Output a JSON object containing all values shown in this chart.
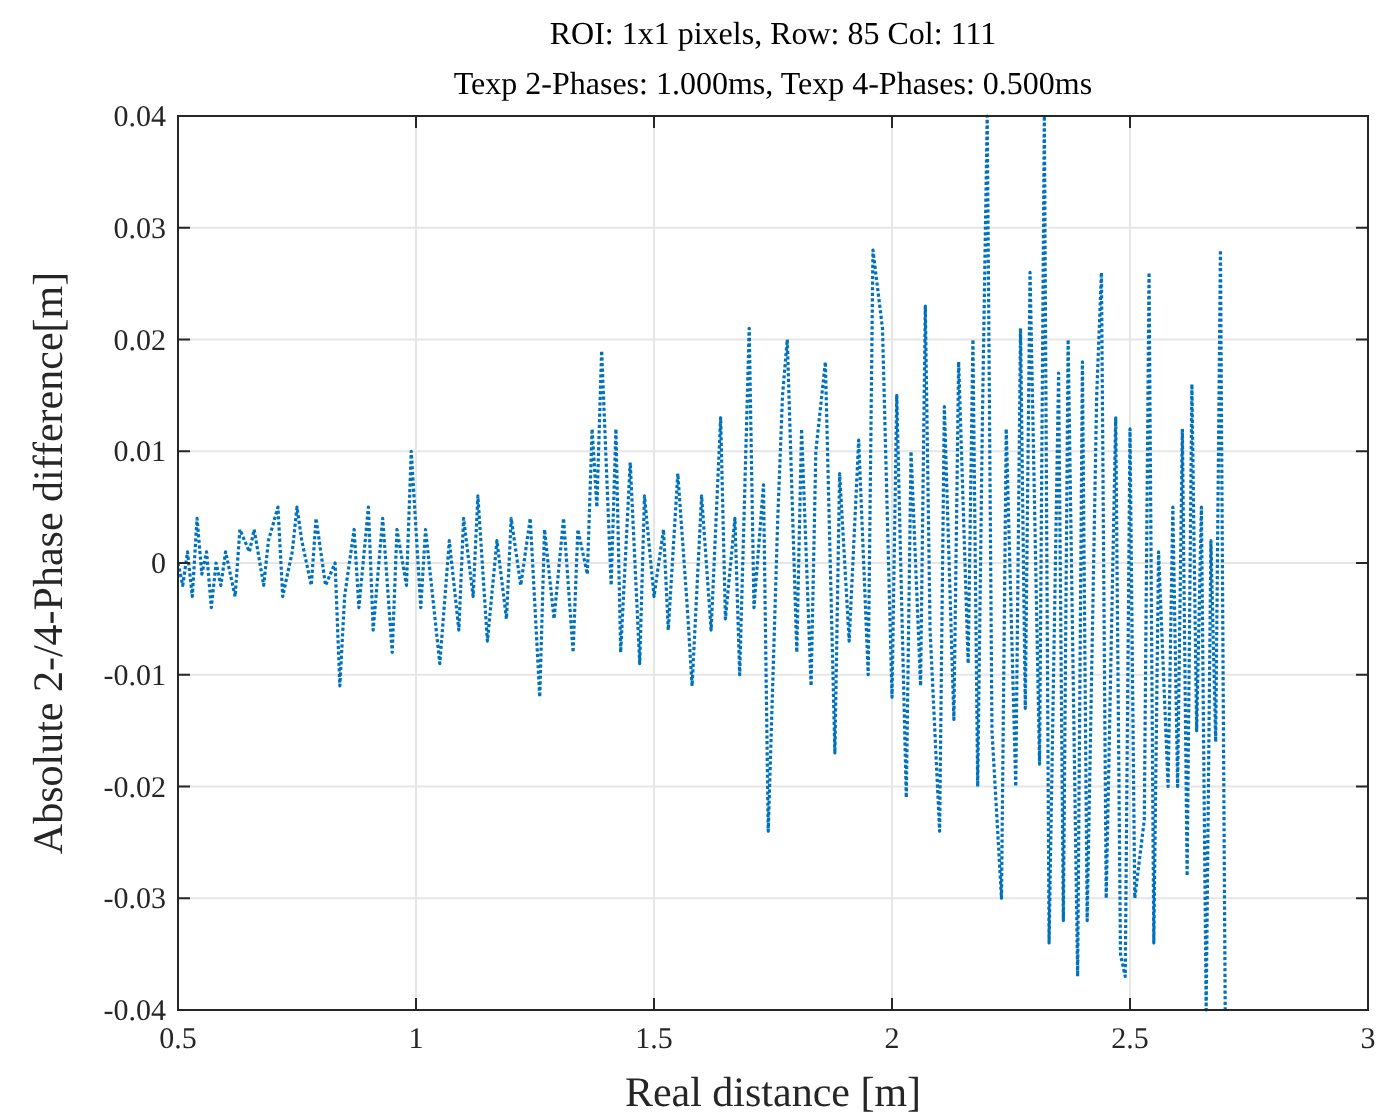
{
  "chart_data": {
    "type": "line",
    "title": "ROI: 1x1 pixels, Row: 85 Col: 111",
    "subtitle": "Texp 2-Phases: 1.000ms, Texp 4-Phases: 0.500ms",
    "xlabel": "Real distance [m]",
    "ylabel": "Absolute 2-/4-Phase difference[m]",
    "x": [
      0.5,
      0.51,
      0.52,
      0.53,
      0.54,
      0.55,
      0.56,
      0.57,
      0.58,
      0.59,
      0.6,
      0.62,
      0.63,
      0.65,
      0.66,
      0.68,
      0.69,
      0.71,
      0.72,
      0.74,
      0.75,
      0.76,
      0.78,
      0.79,
      0.81,
      0.83,
      0.84,
      0.85,
      0.87,
      0.88,
      0.9,
      0.91,
      0.93,
      0.95,
      0.96,
      0.98,
      0.99,
      1.01,
      1.02,
      1.04,
      1.05,
      1.07,
      1.09,
      1.1,
      1.12,
      1.13,
      1.15,
      1.17,
      1.19,
      1.2,
      1.22,
      1.24,
      1.26,
      1.27,
      1.29,
      1.31,
      1.33,
      1.34,
      1.36,
      1.37,
      1.38,
      1.39,
      1.41,
      1.42,
      1.43,
      1.45,
      1.47,
      1.48,
      1.5,
      1.52,
      1.53,
      1.55,
      1.57,
      1.58,
      1.6,
      1.62,
      1.64,
      1.65,
      1.67,
      1.68,
      1.7,
      1.71,
      1.73,
      1.74,
      1.76,
      1.77,
      1.78,
      1.8,
      1.81,
      1.83,
      1.84,
      1.86,
      1.88,
      1.89,
      1.91,
      1.93,
      1.95,
      1.96,
      1.98,
      2.0,
      2.01,
      2.03,
      2.04,
      2.06,
      2.07,
      2.08,
      2.1,
      2.11,
      2.13,
      2.14,
      2.16,
      2.17,
      2.18,
      2.19,
      2.2,
      2.21,
      2.23,
      2.24,
      2.26,
      2.27,
      2.28,
      2.29,
      2.31,
      2.32,
      2.33,
      2.35,
      2.36,
      2.37,
      2.39,
      2.4,
      2.41,
      2.43,
      2.44,
      2.45,
      2.47,
      2.48,
      2.49,
      2.5,
      2.51,
      2.53,
      2.54,
      2.55,
      2.56,
      2.58,
      2.59,
      2.6,
      2.61,
      2.62,
      2.63,
      2.64,
      2.65,
      2.66,
      2.67,
      2.68,
      2.69,
      2.7
    ],
    "series": [
      {
        "color": "#0072bd",
        "values": [
          0,
          -0.002,
          0.001,
          -0.003,
          0.004,
          -0.001,
          0.001,
          -0.004,
          0,
          -0.002,
          0.001,
          -0.003,
          0.003,
          0.001,
          0.003,
          -0.002,
          0.002,
          0.005,
          -0.003,
          0.001,
          0.005,
          0.002,
          -0.002,
          0.004,
          -0.002,
          0,
          -0.011,
          -0.003,
          0.003,
          -0.004,
          0.005,
          -0.006,
          0.004,
          -0.008,
          0.003,
          -0.002,
          0.01,
          -0.004,
          0.003,
          -0.005,
          -0.009,
          0.002,
          -0.006,
          0.004,
          -0.003,
          0.006,
          -0.007,
          0.002,
          -0.005,
          0.004,
          -0.002,
          0.004,
          -0.012,
          0.003,
          -0.005,
          0.004,
          -0.008,
          0.003,
          -0.001,
          0.012,
          0.005,
          0.019,
          -0.002,
          0.012,
          -0.008,
          0.009,
          -0.009,
          0.006,
          -0.003,
          0.003,
          -0.006,
          0.008,
          -0.004,
          -0.011,
          0.006,
          -0.006,
          0.013,
          -0.005,
          0.004,
          -0.01,
          0.021,
          -0.004,
          0.007,
          -0.024,
          0.004,
          0.015,
          0.02,
          -0.008,
          0.012,
          -0.011,
          0.01,
          0.018,
          -0.017,
          0.008,
          -0.007,
          0.011,
          -0.01,
          0.028,
          0.021,
          -0.012,
          0.015,
          -0.021,
          0.01,
          -0.011,
          0.023,
          -0.006,
          -0.024,
          0.014,
          -0.014,
          0.018,
          -0.009,
          0.02,
          -0.02,
          0.013,
          0.04,
          -0.015,
          -0.03,
          0.012,
          -0.02,
          0.021,
          -0.013,
          0.026,
          -0.018,
          0.04,
          -0.034,
          0.017,
          -0.032,
          0.02,
          -0.037,
          0.018,
          -0.032,
          0.015,
          0.026,
          -0.03,
          0.013,
          -0.035,
          -0.037,
          0.012,
          -0.03,
          -0.023,
          0.026,
          -0.034,
          0.001,
          -0.02,
          0.005,
          -0.02,
          0.012,
          -0.028,
          0.016,
          -0.015,
          0.005,
          -0.04,
          0.002,
          -0.016,
          0.028,
          -0.04
        ]
      }
    ],
    "xlim": [
      0.5,
      3
    ],
    "ylim": [
      -0.04,
      0.04
    ],
    "xticks": [
      0.5,
      1,
      1.5,
      2,
      2.5,
      3
    ],
    "yticks": [
      -0.04,
      -0.03,
      -0.02,
      -0.01,
      0,
      0.01,
      0.02,
      0.03,
      0.04
    ],
    "grid": true,
    "line_style": "dotted",
    "marker": "none"
  }
}
